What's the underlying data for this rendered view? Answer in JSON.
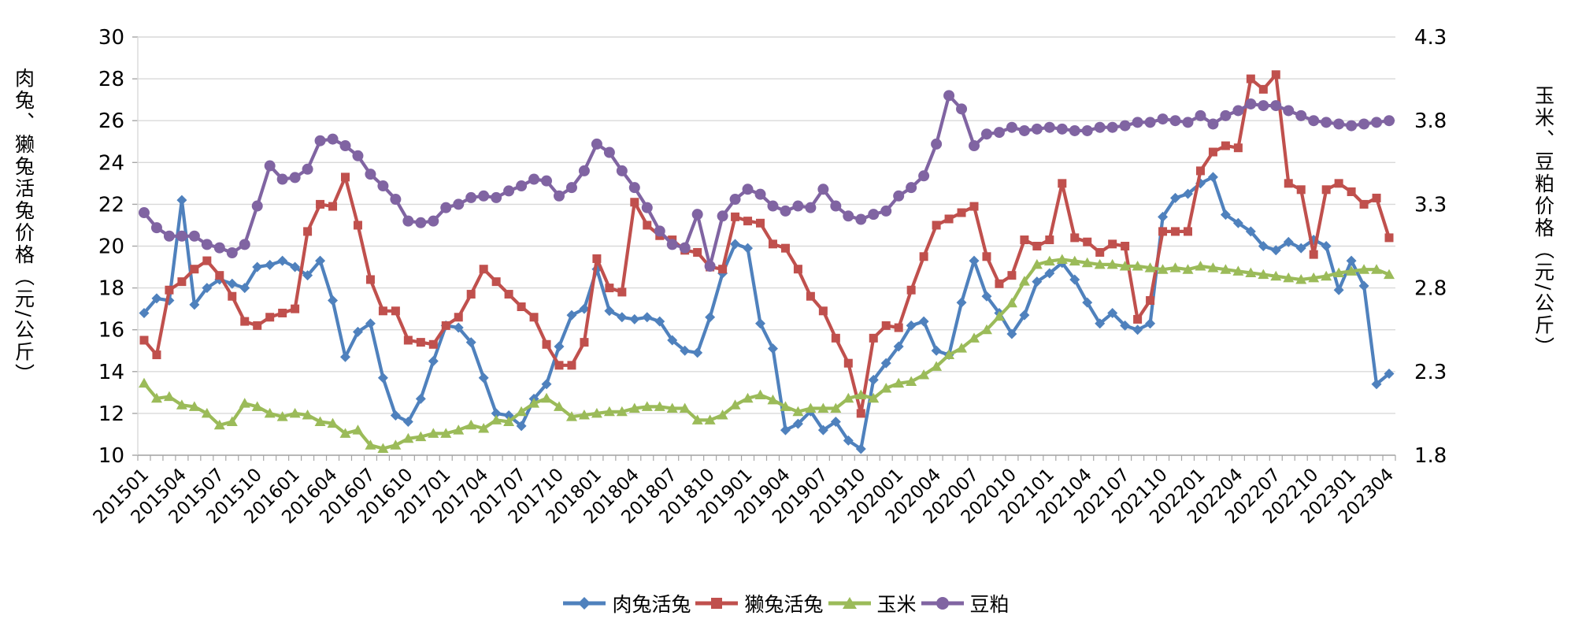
{
  "chart_meta": {
    "left_axis_title": "肉兔、獭兔活兔价格（元/公斤）",
    "right_axis_title": "玉米、豆粕价格（元/公斤）"
  },
  "chart_data": {
    "type": "line",
    "title": "",
    "grid": "horizontal",
    "legend_position": "bottom",
    "background": "#ffffff",
    "gridline_color": "#d9d9d9",
    "axis_color": "#a6a6a6",
    "left_axis": {
      "title": "肉兔、獭兔活兔价格（元/公斤）",
      "min": 10,
      "max": 30,
      "tick_step": 2,
      "ticks": [
        "10",
        "12",
        "14",
        "16",
        "18",
        "20",
        "22",
        "24",
        "26",
        "28",
        "30"
      ]
    },
    "right_axis": {
      "title": "玉米、豆粕价格（元/公斤）",
      "min": 1.8,
      "max": 4.3,
      "tick_step": 0.5,
      "ticks": [
        "1.8",
        "2.3",
        "2.8",
        "3.3",
        "3.8",
        "4.3"
      ]
    },
    "x_axis": {
      "start": "201501",
      "end": "202304",
      "months_count": 100,
      "tick_labels": [
        "201501",
        "201504",
        "201507",
        "201510",
        "201601",
        "201604",
        "201607",
        "201610",
        "201701",
        "201704",
        "201707",
        "201710",
        "201801",
        "201804",
        "201807",
        "201810",
        "201901",
        "201904",
        "201907",
        "201910",
        "202001",
        "202004",
        "202007",
        "202010",
        "202101",
        "202104",
        "202107",
        "202110",
        "202201",
        "202204",
        "202207",
        "202210",
        "202301",
        "202304"
      ]
    },
    "series": [
      {
        "name": "肉兔活兔",
        "color": "#4F81BD",
        "marker": "diamond",
        "axis": "left",
        "values": [
          16.8,
          17.5,
          17.4,
          22.2,
          17.2,
          18.0,
          18.4,
          18.2,
          18.0,
          19.0,
          19.1,
          19.3,
          19.0,
          18.6,
          19.3,
          17.4,
          14.7,
          15.9,
          16.3,
          13.7,
          11.9,
          11.6,
          12.7,
          14.5,
          16.2,
          16.1,
          15.4,
          13.7,
          12.0,
          11.9,
          11.4,
          12.7,
          13.4,
          15.2,
          16.7,
          17.0,
          18.9,
          16.9,
          16.6,
          16.5,
          16.6,
          16.4,
          15.5,
          15.0,
          14.9,
          16.6,
          18.7,
          20.1,
          19.9,
          16.3,
          15.1,
          11.2,
          11.5,
          12.1,
          11.2,
          11.6,
          10.7,
          10.3,
          13.6,
          14.4,
          15.2,
          16.2,
          16.4,
          15.0,
          14.8,
          17.3,
          19.3,
          17.6,
          16.8,
          15.8,
          16.7,
          18.3,
          18.7,
          19.2,
          18.4,
          17.3,
          16.3,
          16.8,
          16.2,
          16.0,
          16.3,
          21.4,
          22.3,
          22.5,
          23.0,
          23.3,
          21.5,
          21.1,
          20.7,
          20.0,
          19.8,
          20.2,
          19.9,
          20.3,
          20.0,
          17.9,
          19.3,
          18.1,
          13.4,
          13.9
        ]
      },
      {
        "name": "獭兔活兔",
        "color": "#C0504D",
        "marker": "square",
        "axis": "left",
        "values": [
          15.5,
          14.8,
          17.9,
          18.3,
          18.9,
          19.3,
          18.6,
          17.6,
          16.4,
          16.2,
          16.6,
          16.8,
          17.0,
          20.7,
          22.0,
          21.9,
          23.3,
          21.0,
          18.4,
          16.9,
          16.9,
          15.5,
          15.4,
          15.3,
          16.2,
          16.6,
          17.7,
          18.9,
          18.3,
          17.7,
          17.1,
          16.6,
          15.3,
          14.3,
          14.3,
          15.4,
          19.4,
          18.0,
          17.8,
          22.1,
          21.0,
          20.5,
          20.3,
          19.8,
          19.7,
          19.0,
          18.9,
          21.4,
          21.2,
          21.1,
          20.1,
          19.9,
          18.9,
          17.6,
          16.9,
          15.6,
          14.4,
          12.0,
          15.6,
          16.2,
          16.1,
          17.9,
          19.5,
          21.0,
          21.3,
          21.6,
          21.9,
          19.5,
          18.2,
          18.6,
          20.3,
          20.0,
          20.3,
          23.0,
          20.4,
          20.2,
          19.7,
          20.1,
          20.0,
          16.5,
          17.4,
          20.7,
          20.7,
          20.7,
          23.6,
          24.5,
          24.8,
          24.7,
          28.0,
          27.5,
          28.2,
          23.0,
          22.7,
          19.6,
          22.7,
          23.0,
          22.6,
          22.0,
          22.3,
          20.4
        ]
      },
      {
        "name": "玉米",
        "color": "#9BBB59",
        "marker": "triangle",
        "axis": "right",
        "values": [
          2.23,
          2.14,
          2.15,
          2.1,
          2.09,
          2.05,
          1.98,
          2.0,
          2.11,
          2.09,
          2.05,
          2.03,
          2.05,
          2.04,
          2.0,
          1.99,
          1.93,
          1.95,
          1.86,
          1.84,
          1.86,
          1.9,
          1.91,
          1.93,
          1.93,
          1.95,
          1.98,
          1.96,
          2.01,
          2.0,
          2.06,
          2.11,
          2.14,
          2.09,
          2.03,
          2.04,
          2.05,
          2.06,
          2.06,
          2.08,
          2.09,
          2.09,
          2.08,
          2.08,
          2.01,
          2.01,
          2.04,
          2.1,
          2.14,
          2.16,
          2.13,
          2.09,
          2.06,
          2.08,
          2.08,
          2.08,
          2.14,
          2.16,
          2.14,
          2.2,
          2.23,
          2.24,
          2.28,
          2.33,
          2.4,
          2.44,
          2.5,
          2.55,
          2.63,
          2.71,
          2.84,
          2.94,
          2.96,
          2.97,
          2.96,
          2.95,
          2.94,
          2.94,
          2.93,
          2.93,
          2.92,
          2.91,
          2.92,
          2.91,
          2.93,
          2.92,
          2.91,
          2.9,
          2.89,
          2.88,
          2.87,
          2.86,
          2.85,
          2.86,
          2.87,
          2.89,
          2.9,
          2.91,
          2.91,
          2.88
        ]
      },
      {
        "name": "豆粕",
        "color": "#8064A2",
        "marker": "circle",
        "axis": "right",
        "values": [
          3.25,
          3.16,
          3.11,
          3.11,
          3.11,
          3.06,
          3.04,
          3.01,
          3.06,
          3.29,
          3.53,
          3.45,
          3.46,
          3.51,
          3.68,
          3.69,
          3.65,
          3.59,
          3.48,
          3.41,
          3.33,
          3.2,
          3.19,
          3.2,
          3.28,
          3.3,
          3.34,
          3.35,
          3.34,
          3.38,
          3.41,
          3.45,
          3.44,
          3.35,
          3.4,
          3.5,
          3.66,
          3.61,
          3.5,
          3.4,
          3.28,
          3.14,
          3.06,
          3.04,
          3.24,
          2.93,
          3.23,
          3.33,
          3.39,
          3.36,
          3.29,
          3.26,
          3.29,
          3.28,
          3.39,
          3.29,
          3.23,
          3.21,
          3.24,
          3.26,
          3.35,
          3.4,
          3.47,
          3.66,
          3.95,
          3.87,
          3.65,
          3.72,
          3.73,
          3.76,
          3.74,
          3.75,
          3.76,
          3.75,
          3.74,
          3.74,
          3.76,
          3.76,
          3.77,
          3.79,
          3.79,
          3.81,
          3.8,
          3.79,
          3.83,
          3.78,
          3.83,
          3.86,
          3.9,
          3.89,
          3.89,
          3.86,
          3.83,
          3.8,
          3.79,
          3.78,
          3.77,
          3.78,
          3.79,
          3.8
        ]
      }
    ]
  }
}
